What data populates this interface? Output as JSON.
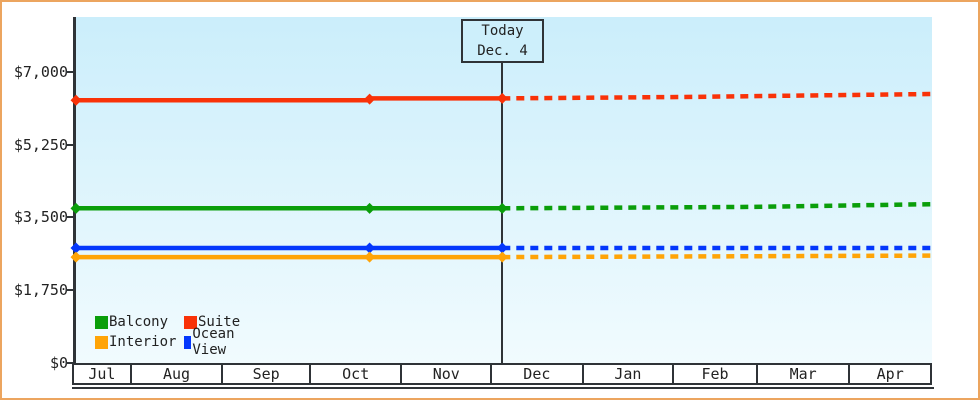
{
  "today_marker": {
    "line1": "Today",
    "line2": "Dec. 4"
  },
  "y_axis": {
    "tick_labels": [
      "$7,000",
      "$5,250",
      "$3,500",
      "$1,750",
      "$0"
    ],
    "tick_values": [
      7000,
      5250,
      3500,
      1750,
      0
    ]
  },
  "x_axis": {
    "month_labels": [
      "Jul",
      "Aug",
      "Sep",
      "Oct",
      "Nov",
      "Dec",
      "Jan",
      "Feb",
      "Mar",
      "Apr"
    ]
  },
  "legend": {
    "items": [
      {
        "label": "Balcony",
        "color": "#0a9e0a"
      },
      {
        "label": "Suite",
        "color": "#f93208"
      },
      {
        "label": "Interior",
        "color": "#ffa407"
      },
      {
        "label": "Ocean View",
        "color": "#0437fc"
      }
    ]
  },
  "colors": {
    "frame_border": "#eca55f",
    "plot_top": "#cbeefb",
    "plot_bottom": "#f1fbfe",
    "axis": "#2f3337",
    "today_box_bg": "#cdeffb"
  },
  "chart_data": {
    "type": "line",
    "currency": "USD",
    "x_categories": [
      "Jul",
      "Aug",
      "Sep",
      "Oct",
      "Nov",
      "Dec",
      "Jan",
      "Feb",
      "Mar",
      "Apr"
    ],
    "today": {
      "label": "Today",
      "date": "Dec. 4",
      "x_fraction": 0.498
    },
    "y_ticks": [
      0,
      1750,
      3500,
      5250,
      7000
    ],
    "ylim": [
      0,
      8300
    ],
    "legend_position": "bottom-left-inside",
    "grid": false,
    "note": "solid = price history, dotted = after today; x_fraction 0 = chart start (mid Jul), 1 = chart end (late Apr)",
    "series": [
      {
        "name": "Suite",
        "color": "#f93208",
        "solid": [
          [
            0,
            6320
          ],
          [
            0.343,
            6320
          ],
          [
            0.343,
            6365
          ],
          [
            0.498,
            6365
          ]
        ],
        "dashed": [
          [
            0.498,
            6365
          ],
          [
            0.72,
            6400
          ],
          [
            1,
            6470
          ]
        ],
        "markers": [
          [
            0,
            6320
          ],
          [
            0.343,
            6345
          ],
          [
            0.498,
            6365
          ]
        ]
      },
      {
        "name": "Balcony",
        "color": "#0a9e0a",
        "solid": [
          [
            0,
            3715
          ],
          [
            0.498,
            3715
          ]
        ],
        "dashed": [
          [
            0.498,
            3715
          ],
          [
            0.79,
            3750
          ],
          [
            1,
            3815
          ]
        ],
        "markers": [
          [
            0,
            3715
          ],
          [
            0.343,
            3715
          ],
          [
            0.498,
            3715
          ]
        ]
      },
      {
        "name": "Ocean View",
        "color": "#0437fc",
        "solid": [
          [
            0,
            2760
          ],
          [
            0.498,
            2760
          ]
        ],
        "dashed": [
          [
            0.498,
            2760
          ],
          [
            1,
            2760
          ]
        ],
        "markers": [
          [
            0,
            2760
          ],
          [
            0.343,
            2760
          ],
          [
            0.498,
            2760
          ]
        ]
      },
      {
        "name": "Interior",
        "color": "#ffa407",
        "solid": [
          [
            0,
            2540
          ],
          [
            0.498,
            2540
          ]
        ],
        "dashed": [
          [
            0.498,
            2540
          ],
          [
            1,
            2575
          ]
        ],
        "markers": [
          [
            0,
            2540
          ],
          [
            0.343,
            2540
          ],
          [
            0.498,
            2540
          ]
        ]
      }
    ]
  }
}
